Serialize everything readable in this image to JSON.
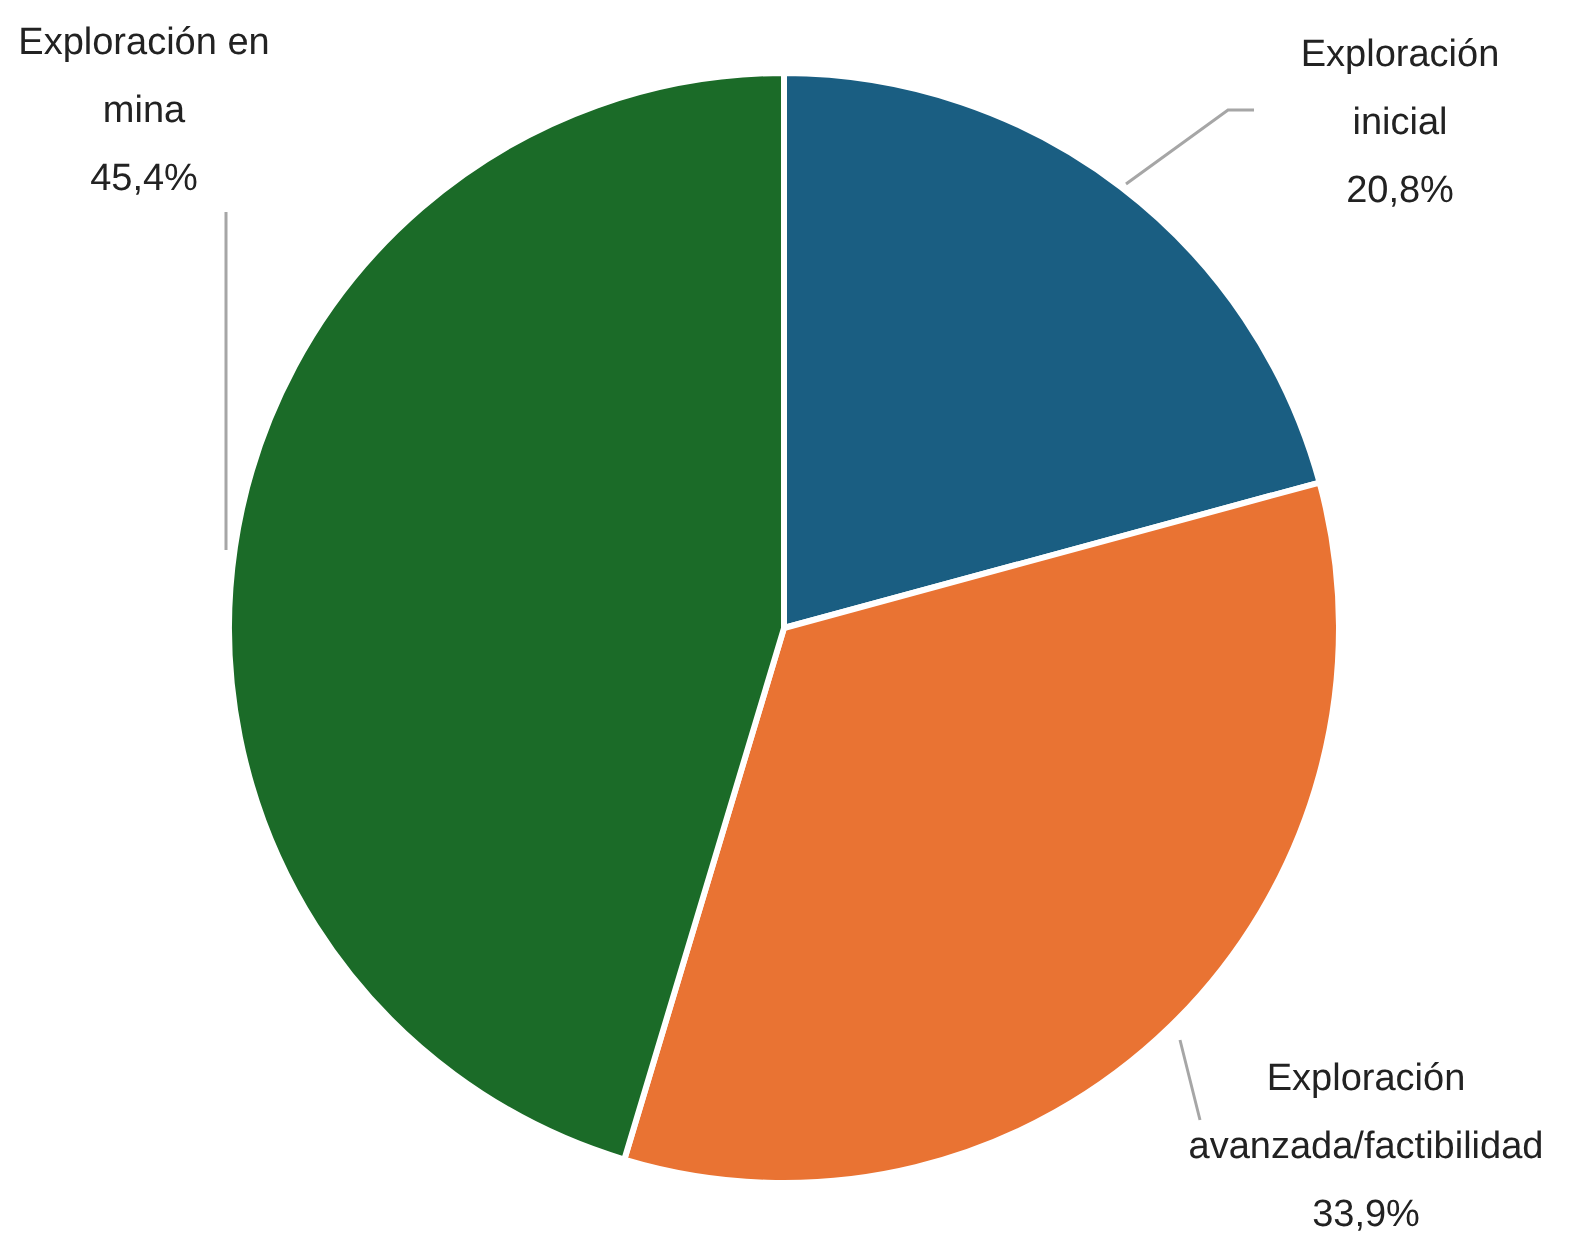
{
  "chart_data": {
    "type": "pie",
    "categories": [
      "Exploración inicial",
      "Exploración avanzada/factibilidad",
      "Exploración en mina"
    ],
    "values": [
      20.8,
      33.9,
      45.4
    ],
    "colors": [
      "#1a5e82",
      "#e97333",
      "#1b6b28"
    ],
    "value_labels": [
      "20,8%",
      "33,9%",
      "45,4%"
    ],
    "legend": false
  }
}
